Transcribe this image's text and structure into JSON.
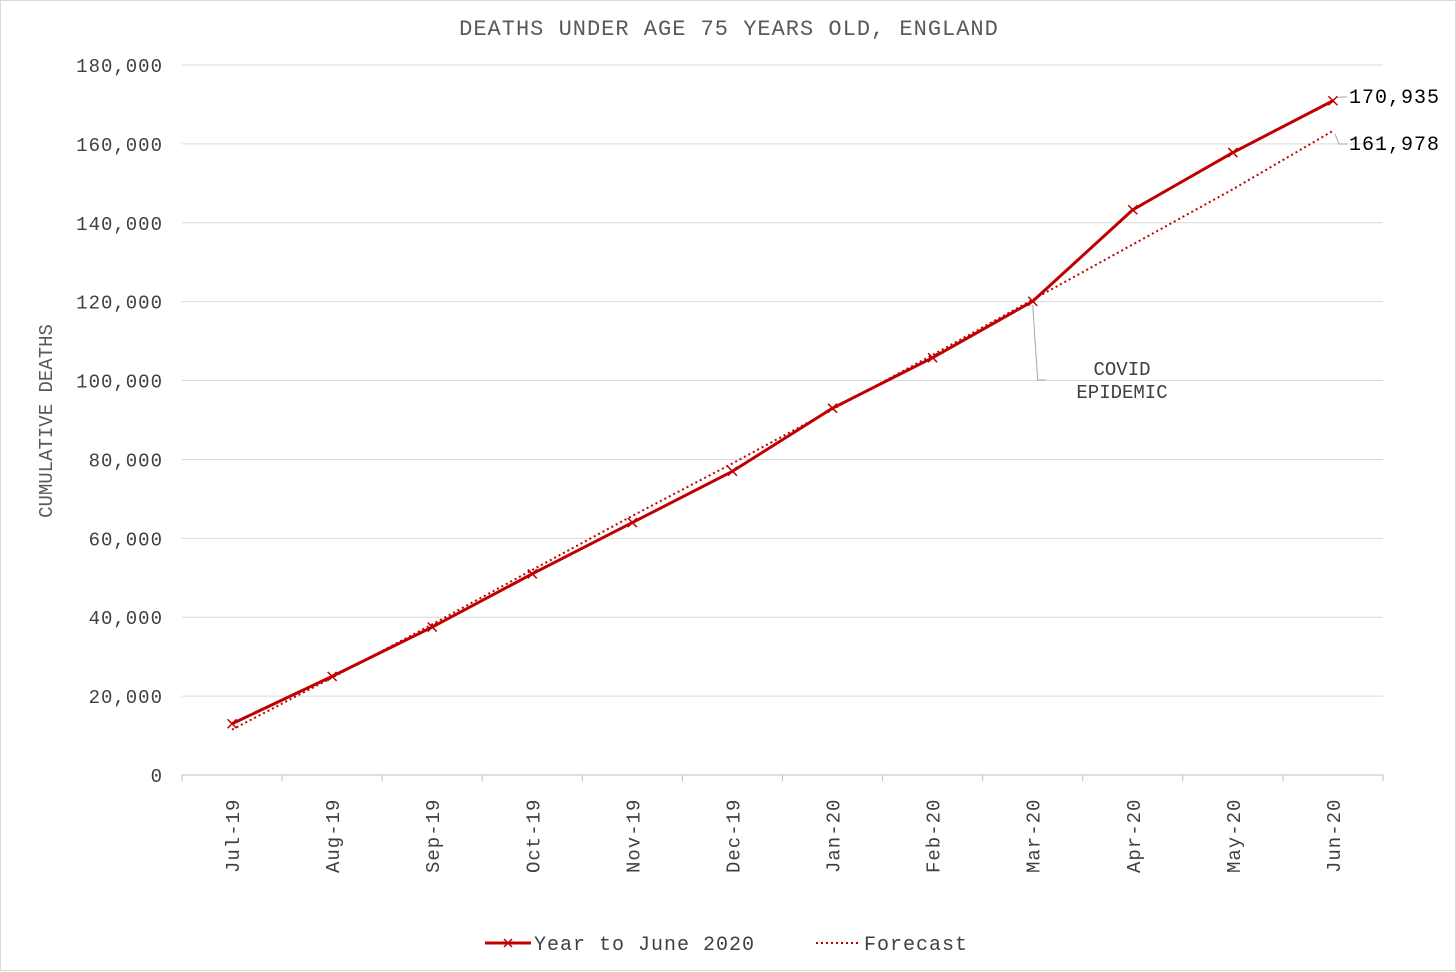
{
  "chart_data": {
    "type": "line",
    "title": "DEATHS UNDER AGE 75 YEARS OLD, ENGLAND",
    "ylabel": "CUMULATIVE DEATHS",
    "xlabel": "",
    "categories": [
      "Jul-19",
      "Aug-19",
      "Sep-19",
      "Oct-19",
      "Nov-19",
      "Dec-19",
      "Jan-20",
      "Feb-20",
      "Mar-20",
      "Apr-20",
      "May-20",
      "Jun-20"
    ],
    "ylim": [
      0,
      180000
    ],
    "yticks": [
      0,
      20000,
      40000,
      60000,
      80000,
      100000,
      120000,
      140000,
      160000,
      180000
    ],
    "ytick_labels": [
      "0",
      "20,000",
      "40,000",
      "60,000",
      "80,000",
      "100,000",
      "120,000",
      "140,000",
      "160,000",
      "180,000"
    ],
    "grid": true,
    "legend_position": "bottom",
    "series": [
      {
        "name": "Year to June 2020",
        "style": "solid",
        "marker": "x",
        "color": "#c00000",
        "values": [
          13000,
          25000,
          37500,
          51000,
          64000,
          77000,
          93000,
          105800,
          120100,
          143300,
          157800,
          170935
        ]
      },
      {
        "name": "Forecast",
        "style": "dotted",
        "color": "#c00000",
        "values": [
          11500,
          24700,
          38200,
          52000,
          65700,
          79000,
          92700,
          106500,
          120500,
          134500,
          148500,
          163300
        ]
      }
    ],
    "data_labels": [
      "170,935",
      "161,978"
    ],
    "annotation": {
      "lines": [
        "COVID",
        "EPIDEMIC"
      ],
      "category": "Mar-20"
    }
  }
}
